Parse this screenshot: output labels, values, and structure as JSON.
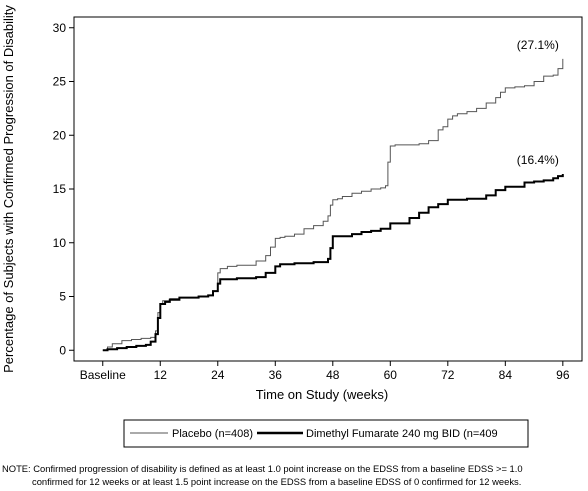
{
  "chart_data": {
    "type": "line",
    "title": "",
    "xlabel": "Time on Study (weeks)",
    "ylabel": "Percentage of Subjects with Confirmed Progression of Disability",
    "xlim": [
      -6,
      100
    ],
    "ylim": [
      -1,
      31
    ],
    "x_ticks": [
      0,
      12,
      24,
      36,
      48,
      60,
      72,
      84,
      96
    ],
    "x_tick_labels": [
      "Baseline",
      "12",
      "24",
      "36",
      "48",
      "60",
      "72",
      "84",
      "96"
    ],
    "y_ticks": [
      0,
      5,
      10,
      15,
      20,
      25,
      30
    ],
    "y_tick_labels": [
      "0",
      "5",
      "10",
      "15",
      "20",
      "25",
      "30"
    ],
    "grid": false,
    "legend_position": "bottom",
    "series": [
      {
        "name": "Placebo (n=408)",
        "color": "#555555",
        "end_label": "(27.1%)",
        "x": [
          0,
          1,
          2,
          4,
          6,
          8,
          10,
          11,
          11.5,
          12,
          12.5,
          14,
          16,
          20,
          22,
          23,
          24,
          24.5,
          26,
          28,
          32,
          34,
          35,
          36,
          37,
          38,
          40,
          42,
          44,
          46,
          47,
          47.5,
          48,
          49,
          50,
          52,
          54,
          56,
          58,
          59,
          59.5,
          60,
          61,
          62,
          66,
          68,
          70,
          71,
          72,
          73,
          74,
          76,
          78,
          80,
          82,
          83,
          84,
          86,
          88,
          90,
          92,
          94,
          95,
          96
        ],
        "y": [
          0,
          0.3,
          0.6,
          0.9,
          1.0,
          1.1,
          1.2,
          1.8,
          3.5,
          4.3,
          4.6,
          4.8,
          4.9,
          5.0,
          5.1,
          5.5,
          7.2,
          7.6,
          7.8,
          7.9,
          8.3,
          8.8,
          9.6,
          10.4,
          10.5,
          10.6,
          10.8,
          11.3,
          11.6,
          12.0,
          12.5,
          13.5,
          14.0,
          14.1,
          14.3,
          14.6,
          14.8,
          15.0,
          15.1,
          15.3,
          17.5,
          19.0,
          19.1,
          19.1,
          19.2,
          19.5,
          20.5,
          20.8,
          21.5,
          21.8,
          22.0,
          22.2,
          22.5,
          23.0,
          23.5,
          24.0,
          24.4,
          24.5,
          24.6,
          25.0,
          25.5,
          25.6,
          26.2,
          27.1
        ]
      },
      {
        "name": "Dimethyl Fumarate 240 mg BID (n=409",
        "color": "#000000",
        "end_label": "(16.4%)",
        "x": [
          0,
          1,
          3,
          5,
          7,
          9,
          10,
          11,
          11.5,
          12,
          13,
          14,
          16,
          20,
          22,
          23,
          24,
          24.5,
          28,
          32,
          34,
          36,
          37,
          40,
          44,
          47,
          47.5,
          48,
          52,
          54,
          56,
          58,
          60,
          64,
          66,
          68,
          70,
          72,
          76,
          80,
          82,
          84,
          88,
          90,
          92,
          94,
          95,
          96
        ],
        "y": [
          0,
          0.1,
          0.2,
          0.3,
          0.4,
          0.5,
          0.8,
          1.5,
          3.0,
          4.3,
          4.5,
          4.7,
          4.9,
          5.0,
          5.1,
          5.5,
          6.2,
          6.6,
          6.7,
          6.8,
          7.2,
          7.8,
          8.0,
          8.1,
          8.2,
          8.5,
          9.5,
          10.6,
          10.8,
          11.0,
          11.1,
          11.3,
          11.8,
          12.3,
          12.8,
          13.3,
          13.6,
          14.0,
          14.1,
          14.4,
          14.9,
          15.2,
          15.6,
          15.7,
          15.8,
          16.0,
          16.2,
          16.4
        ]
      }
    ]
  },
  "note": {
    "line1": "NOTE: Confirmed progression of disability is defined as at least 1.0 point increase on the EDSS from a baseline EDSS >= 1.0",
    "line2": "confirmed for 12 weeks or at least 1.5 point increase on the EDSS from a baseline EDSS of 0 confirmed for 12 weeks."
  }
}
